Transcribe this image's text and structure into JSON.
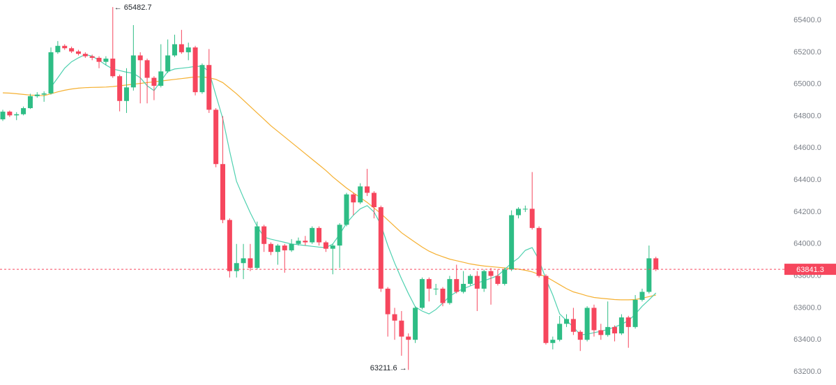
{
  "chart_data": {
    "type": "candlestick",
    "ylim": [
      63117,
      65527
    ],
    "yticks": [
      {
        "value": 63200,
        "label": "63200.0"
      },
      {
        "value": 63400,
        "label": "63400.0"
      },
      {
        "value": 63600,
        "label": "63600.0"
      },
      {
        "value": 63800,
        "label": "63800.0"
      },
      {
        "value": 64000,
        "label": "64000.0"
      },
      {
        "value": 64200,
        "label": "64200.0"
      },
      {
        "value": 64400,
        "label": "64400.0"
      },
      {
        "value": 64600,
        "label": "64600.0"
      },
      {
        "value": 64800,
        "label": "64800.0"
      },
      {
        "value": 65000,
        "label": "65000.0"
      },
      {
        "value": 65200,
        "label": "65200.0"
      },
      {
        "value": 65400,
        "label": "65400.0"
      }
    ],
    "up_color": "#2ebd85",
    "down_color": "#f6465d",
    "open": [
      64780,
      64828,
      64805,
      64812,
      64850,
      64925,
      64935,
      64942,
      65200,
      65240,
      65225,
      65205,
      65190,
      65175,
      65165,
      65140,
      65160,
      65050,
      64895,
      64980,
      65180,
      65150,
      65040,
      64990,
      65080,
      65180,
      65250,
      65200,
      65230,
      64950,
      65120,
      64840,
      64500,
      64150,
      63830,
      63880,
      63910,
      63850,
      64110,
      64000,
      63950,
      63990,
      63960,
      64000,
      64020,
      64010,
      64100,
      64010,
      63970,
      63990,
      64120,
      64310,
      64260,
      64360,
      64320,
      64230,
      63720,
      63560,
      63520,
      63420,
      63400,
      63600,
      63780,
      63720,
      63720,
      63630,
      63780,
      63700,
      63750,
      63800,
      63720,
      63830,
      63800,
      63750,
      63840,
      64180,
      64220,
      64220,
      64100,
      63800,
      63380,
      63400,
      63500,
      63530,
      63450,
      63400,
      63600,
      63460,
      63430,
      63480,
      63440,
      63540,
      63480,
      63650,
      63700,
      63910
    ],
    "high": [
      64840,
      64835,
      64825,
      64860,
      64940,
      64950,
      64955,
      65230,
      65270,
      65250,
      65235,
      65215,
      65200,
      65185,
      65175,
      65175,
      65482.7,
      65060,
      65100,
      65370,
      65200,
      65160,
      65050,
      65250,
      65280,
      65310,
      65340,
      65260,
      65240,
      65130,
      65220,
      64850,
      64800,
      64160,
      64000,
      64000,
      64000,
      64140,
      64120,
      64010,
      64000,
      64000,
      64030,
      64040,
      64050,
      64110,
      64110,
      64020,
      64000,
      64130,
      64320,
      64320,
      64380,
      64470,
      64330,
      64240,
      63730,
      63600,
      63580,
      63440,
      63610,
      63790,
      63790,
      63750,
      63730,
      63800,
      63870,
      63830,
      63810,
      63830,
      63840,
      63850,
      63840,
      63850,
      64210,
      64230,
      64240,
      64450,
      64110,
      63810,
      63420,
      63550,
      63560,
      63600,
      63460,
      63610,
      63620,
      63500,
      63640,
      63490,
      63560,
      63550,
      63680,
      63720,
      63990,
      63920
    ],
    "low": [
      64770,
      64795,
      64775,
      64805,
      64845,
      64915,
      64890,
      64935,
      65190,
      65215,
      65195,
      65180,
      65165,
      65150,
      65100,
      65120,
      65040,
      64830,
      64820,
      64960,
      64880,
      64880,
      64900,
      64980,
      65070,
      65170,
      65190,
      65150,
      64930,
      64940,
      64820,
      64480,
      64130,
      63790,
      63790,
      63780,
      63830,
      63840,
      63950,
      63930,
      63870,
      63820,
      63950,
      63990,
      63990,
      64000,
      63990,
      63950,
      63810,
      63850,
      64110,
      64180,
      64250,
      64300,
      64160,
      63700,
      63420,
      63400,
      63300,
      63211.6,
      63380,
      63590,
      63640,
      63680,
      63610,
      63620,
      63690,
      63690,
      63740,
      63580,
      63700,
      63620,
      63740,
      63740,
      63830,
      64160,
      64200,
      64090,
      63790,
      63370,
      63340,
      63390,
      63480,
      63430,
      63330,
      63390,
      63420,
      63400,
      63420,
      63390,
      63430,
      63350,
      63470,
      63640,
      63690,
      63830
    ],
    "close": [
      64828,
      64805,
      64812,
      64850,
      64925,
      64935,
      64942,
      65200,
      65240,
      65225,
      65205,
      65190,
      65175,
      65165,
      65140,
      65160,
      65050,
      64895,
      64980,
      65180,
      65150,
      65040,
      64990,
      65080,
      65180,
      65250,
      65200,
      65230,
      64950,
      65120,
      64840,
      64500,
      64150,
      63830,
      63880,
      63910,
      63850,
      64110,
      64000,
      63950,
      63990,
      63960,
      64000,
      64020,
      64010,
      64100,
      64010,
      63970,
      63990,
      64120,
      64310,
      64260,
      64360,
      64320,
      64230,
      63720,
      63560,
      63520,
      63420,
      63400,
      63600,
      63780,
      63720,
      63720,
      63630,
      63780,
      63700,
      63750,
      63800,
      63720,
      63830,
      63800,
      63750,
      63840,
      64180,
      64220,
      64220,
      64100,
      63800,
      63380,
      63400,
      63500,
      63530,
      63450,
      63400,
      63600,
      63460,
      63430,
      63480,
      63440,
      63540,
      63480,
      63650,
      63700,
      63910,
      63841.3
    ],
    "series": [
      {
        "color": "#f5b031",
        "values": [
          64946,
          64944,
          64940,
          64936,
          64932,
          64930,
          64928,
          64940,
          64952,
          64962,
          64970,
          64975,
          64978,
          64980,
          64981,
          64982,
          64985,
          64990,
          64995,
          65000,
          65005,
          65010,
          65015,
          65020,
          65025,
          65030,
          65035,
          65040,
          65046,
          65046,
          65040,
          65030,
          65010,
          64975,
          64940,
          64900,
          64860,
          64820,
          64780,
          64740,
          64705,
          64670,
          64635,
          64600,
          64565,
          64530,
          64495,
          64460,
          64420,
          64385,
          64350,
          64320,
          64290,
          64260,
          64225,
          64190,
          64150,
          64110,
          64070,
          64040,
          64010,
          63980,
          63955,
          63935,
          63920,
          63905,
          63895,
          63885,
          63875,
          63868,
          63862,
          63858,
          63854,
          63850,
          63846,
          63842,
          63835,
          63825,
          63810,
          63795,
          63770,
          63745,
          63720,
          63700,
          63688,
          63675,
          63665,
          63660,
          63656,
          63652,
          63650,
          63650,
          63652,
          63660,
          63670,
          63680
        ]
      },
      {
        "color": "#4fd1b0",
        "values": [
          null,
          null,
          null,
          null,
          null,
          null,
          null,
          64981,
          65040,
          65100,
          65140,
          65165,
          65186,
          65175,
          65150,
          65120,
          65095,
          65085,
          65075,
          65068,
          65040,
          64990,
          64960,
          65020,
          65080,
          65095,
          65100,
          65105,
          65112,
          65112,
          65080,
          64930,
          64785,
          64580,
          64392,
          64290,
          64195,
          64110,
          64043,
          64030,
          64020,
          64010,
          64000,
          63995,
          63990,
          63985,
          63980,
          63977,
          64000,
          64060,
          64130,
          64180,
          64220,
          64240,
          64200,
          64120,
          63990,
          63880,
          63781,
          63690,
          63606,
          63580,
          63562,
          63590,
          63630,
          63672,
          63700,
          63720,
          63737,
          63755,
          63770,
          63785,
          63802,
          63840,
          63880,
          63911,
          63960,
          63977,
          63900,
          63781,
          63680,
          63562,
          63520,
          63480,
          63431,
          63435,
          63445,
          63453,
          63465,
          63480,
          63497,
          63520,
          63560,
          63610,
          63650,
          63693
        ]
      }
    ],
    "max_label": "← 65482.7",
    "min_label": "63211.6 →",
    "last_price": 63841.3,
    "last_price_color": "#f6465d"
  }
}
